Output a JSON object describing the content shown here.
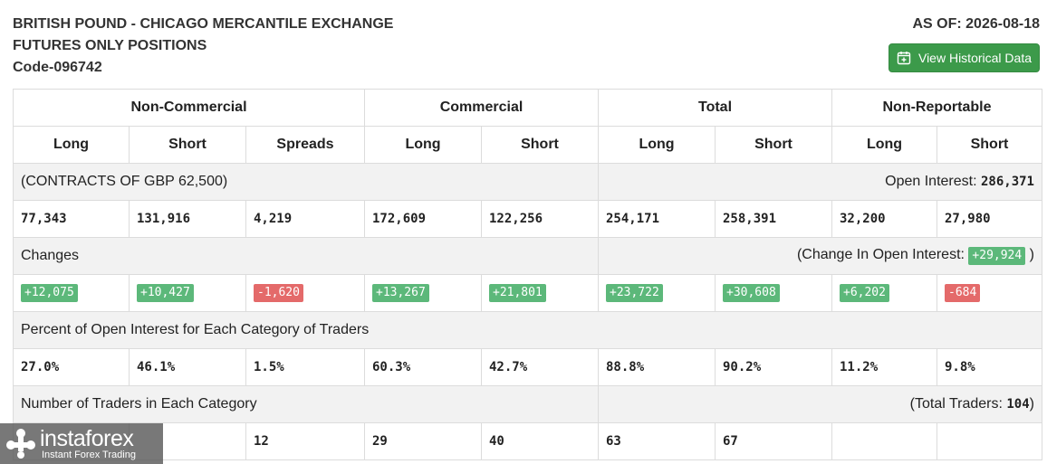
{
  "header": {
    "title_line1": "BRITISH POUND - CHICAGO MERCANTILE EXCHANGE",
    "title_line2": "FUTURES ONLY POSITIONS",
    "code": "Code-096742",
    "as_of": "AS OF: 2026-08-18",
    "history_button": "View Historical Data"
  },
  "table": {
    "groups": [
      "Non-Commercial",
      "Commercial",
      "Total",
      "Non-Reportable"
    ],
    "subheaders": [
      "Long",
      "Short",
      "Spreads",
      "Long",
      "Short",
      "Long",
      "Short",
      "Long",
      "Short"
    ],
    "contracts_label": "(CONTRACTS OF GBP 62,500)",
    "open_interest_label": "Open Interest:",
    "open_interest_value": "286,371",
    "positions": [
      "77,343",
      "131,916",
      "4,219",
      "172,609",
      "122,256",
      "254,171",
      "258,391",
      "32,200",
      "27,980"
    ],
    "changes_label": "Changes",
    "change_oi_label": "(Change In Open Interest:",
    "change_oi_value": "+29,924",
    "change_oi_close": ")",
    "changes": [
      {
        "value": "+12,075",
        "dir": "pos"
      },
      {
        "value": "+10,427",
        "dir": "pos"
      },
      {
        "value": "-1,620",
        "dir": "neg"
      },
      {
        "value": "+13,267",
        "dir": "pos"
      },
      {
        "value": "+21,801",
        "dir": "pos"
      },
      {
        "value": "+23,722",
        "dir": "pos"
      },
      {
        "value": "+30,608",
        "dir": "pos"
      },
      {
        "value": "+6,202",
        "dir": "pos"
      },
      {
        "value": "-684",
        "dir": "neg"
      }
    ],
    "percent_label": "Percent of Open Interest for Each Category of Traders",
    "percents": [
      "27.0%",
      "46.1%",
      "1.5%",
      "60.3%",
      "42.7%",
      "88.8%",
      "90.2%",
      "11.2%",
      "9.8%"
    ],
    "traders_label": "Number of Traders in Each Category",
    "total_traders_label": "(Total Traders:",
    "total_traders_value": "104",
    "total_traders_close": ")",
    "traders": [
      "",
      "",
      "12",
      "29",
      "40",
      "63",
      "67",
      "",
      ""
    ]
  },
  "logo": {
    "brand": "instaforex",
    "tagline": "Instant Forex Trading"
  },
  "colors": {
    "positive": "#5cb87a",
    "negative": "#e46a6a",
    "button": "#3c9a4a",
    "band": "#f2f2f2"
  }
}
